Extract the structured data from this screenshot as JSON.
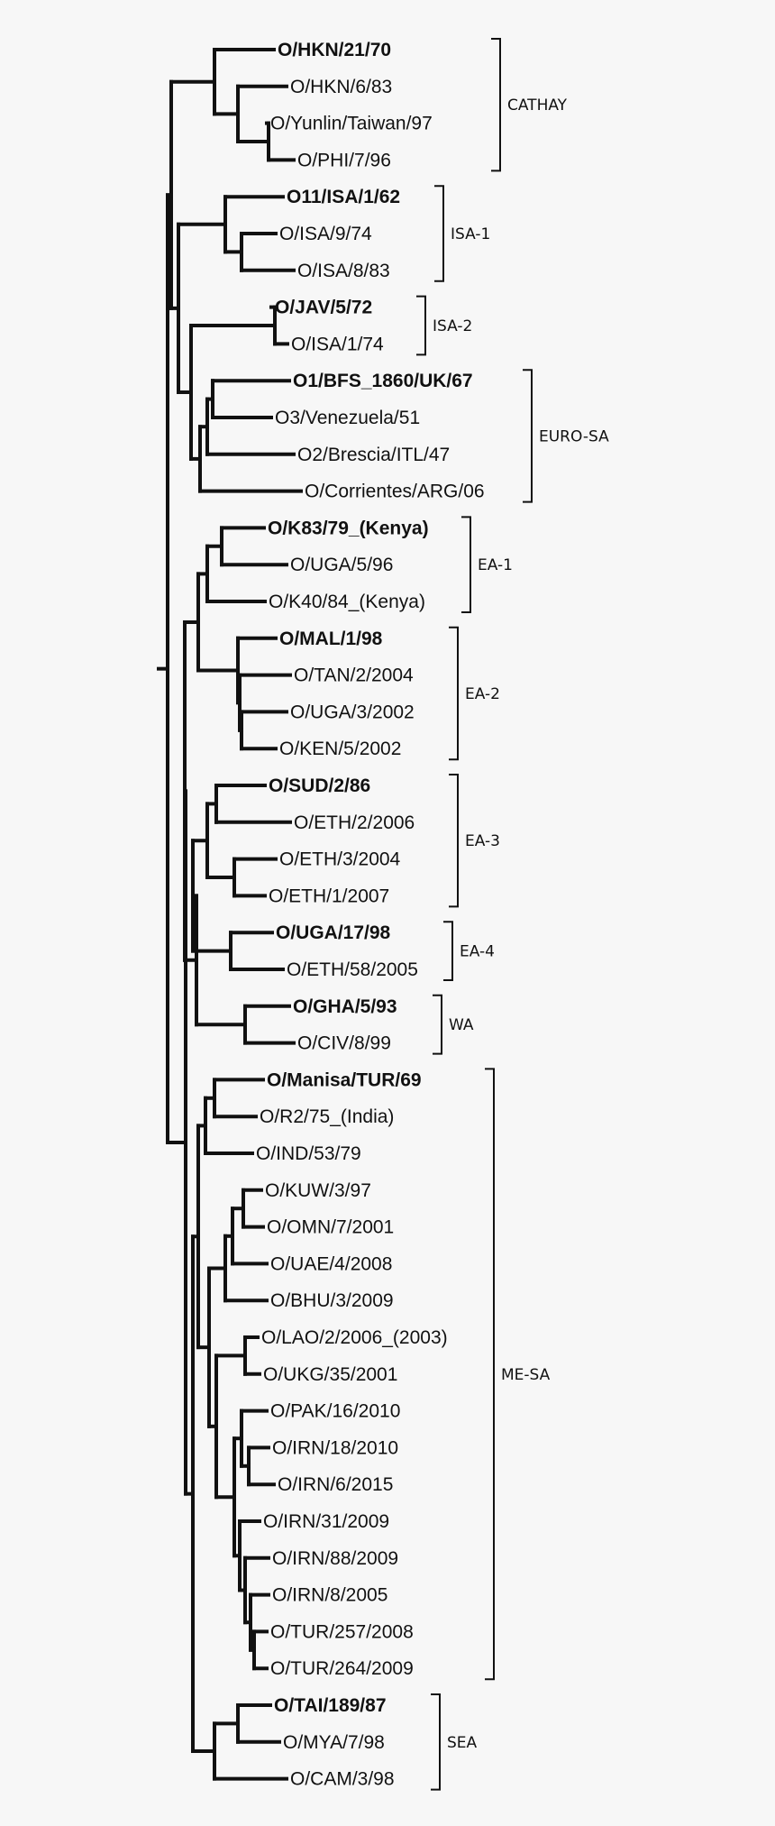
{
  "tree": {
    "leaves": [
      {
        "label": "O/HKN/21/70",
        "bold": true
      },
      {
        "label": "O/HKN/6/83",
        "bold": false
      },
      {
        "label": "O/Yunlin/Taiwan/97",
        "bold": false
      },
      {
        "label": "O/PHI/7/96",
        "bold": false
      },
      {
        "label": "O11/ISA/1/62",
        "bold": true
      },
      {
        "label": "O/ISA/9/74",
        "bold": false
      },
      {
        "label": "O/ISA/8/83",
        "bold": false
      },
      {
        "label": "O/JAV/5/72",
        "bold": true
      },
      {
        "label": "O/ISA/1/74",
        "bold": false
      },
      {
        "label": "O1/BFS_1860/UK/67",
        "bold": true
      },
      {
        "label": "O3/Venezuela/51",
        "bold": false
      },
      {
        "label": "O2/Brescia/ITL/47",
        "bold": false
      },
      {
        "label": "O/Corrientes/ARG/06",
        "bold": false
      },
      {
        "label": "O/K83/79_(Kenya)",
        "bold": true
      },
      {
        "label": "O/UGA/5/96",
        "bold": false
      },
      {
        "label": "O/K40/84_(Kenya)",
        "bold": false
      },
      {
        "label": "O/MAL/1/98",
        "bold": true
      },
      {
        "label": "O/TAN/2/2004",
        "bold": false
      },
      {
        "label": "O/UGA/3/2002",
        "bold": false
      },
      {
        "label": "O/KEN/5/2002",
        "bold": false
      },
      {
        "label": "O/SUD/2/86",
        "bold": true
      },
      {
        "label": "O/ETH/2/2006",
        "bold": false
      },
      {
        "label": "O/ETH/3/2004",
        "bold": false
      },
      {
        "label": "O/ETH/1/2007",
        "bold": false
      },
      {
        "label": "O/UGA/17/98",
        "bold": true
      },
      {
        "label": "O/ETH/58/2005",
        "bold": false
      },
      {
        "label": "O/GHA/5/93",
        "bold": true
      },
      {
        "label": "O/CIV/8/99",
        "bold": false
      },
      {
        "label": "O/Manisa/TUR/69",
        "bold": true
      },
      {
        "label": "O/R2/75_(India)",
        "bold": false
      },
      {
        "label": "O/IND/53/79",
        "bold": false
      },
      {
        "label": "O/KUW/3/97",
        "bold": false
      },
      {
        "label": "O/OMN/7/2001",
        "bold": false
      },
      {
        "label": "O/UAE/4/2008",
        "bold": false
      },
      {
        "label": "O/BHU/3/2009",
        "bold": false
      },
      {
        "label": "O/LAO/2/2006_(2003)",
        "bold": false
      },
      {
        "label": "O/UKG/35/2001",
        "bold": false
      },
      {
        "label": "O/PAK/16/2010",
        "bold": false
      },
      {
        "label": "O/IRN/18/2010",
        "bold": false
      },
      {
        "label": "O/IRN/6/2015",
        "bold": false
      },
      {
        "label": "O/IRN/31/2009",
        "bold": false
      },
      {
        "label": "O/IRN/88/2009",
        "bold": false
      },
      {
        "label": "O/IRN/8/2005",
        "bold": false
      },
      {
        "label": "O/TUR/257/2008",
        "bold": false
      },
      {
        "label": "O/TUR/264/2009",
        "bold": false
      },
      {
        "label": "O/TAI/189/87",
        "bold": true
      },
      {
        "label": "O/MYA/7/98",
        "bold": false
      },
      {
        "label": "O/CAM/3/98",
        "bold": false
      }
    ],
    "clades": [
      {
        "label": "CATHAY",
        "first_leaf": 0,
        "last_leaf": 3
      },
      {
        "label": "ISA-1",
        "first_leaf": 4,
        "last_leaf": 6
      },
      {
        "label": "ISA-2",
        "first_leaf": 7,
        "last_leaf": 8
      },
      {
        "label": "EURO-SA",
        "first_leaf": 9,
        "last_leaf": 12
      },
      {
        "label": "EA-1",
        "first_leaf": 13,
        "last_leaf": 15
      },
      {
        "label": "EA-2",
        "first_leaf": 16,
        "last_leaf": 19
      },
      {
        "label": "EA-3",
        "first_leaf": 20,
        "last_leaf": 23
      },
      {
        "label": "EA-4",
        "first_leaf": 24,
        "last_leaf": 25
      },
      {
        "label": "WA",
        "first_leaf": 26,
        "last_leaf": 27
      },
      {
        "label": "ME-SA",
        "first_leaf": 28,
        "last_leaf": 44
      },
      {
        "label": "SEA",
        "first_leaf": 45,
        "last_leaf": 47
      }
    ]
  }
}
